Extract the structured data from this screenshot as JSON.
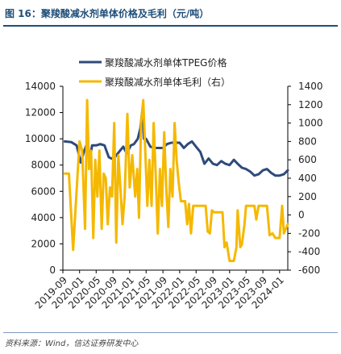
{
  "figure": {
    "title": "图 16：聚羧酸减水剂单体价格及毛利（元/吨）",
    "source": "资料来源：Wind，信达证券研发中心"
  },
  "colors": {
    "price": "#2e4a7a",
    "margin": "#f5b800",
    "title": "#1f4e79"
  },
  "chart_data": {
    "type": "line",
    "title": "",
    "x_axis": {
      "type": "date",
      "range": [
        "2019-09",
        "2024-03"
      ],
      "tick_labels": [
        "2019-09",
        "2020-01",
        "2020-05",
        "2020-09",
        "2021-01",
        "2021-05",
        "2021-09",
        "2022-01",
        "2022-05",
        "2022-09",
        "2023-01",
        "2023-05",
        "2023-09",
        "2024-01"
      ],
      "tick_values": [
        "2019-09",
        "2020-01",
        "2020-05",
        "2020-09",
        "2021-01",
        "2021-05",
        "2021-09",
        "2022-01",
        "2022-05",
        "2022-09",
        "2023-01",
        "2023-05",
        "2023-09",
        "2024-01"
      ]
    },
    "y_left": {
      "min": 0,
      "max": 14000,
      "ticks": [
        0,
        2000,
        4000,
        6000,
        8000,
        10000,
        12000,
        14000
      ],
      "tick_labels": [
        "0",
        "2000",
        "4000",
        "6000",
        "8000",
        "10000",
        "12000",
        "14000"
      ]
    },
    "y_right": {
      "min": -600,
      "max": 1400,
      "ticks": [
        -600,
        -400,
        -200,
        0,
        200,
        400,
        600,
        800,
        1000,
        1200,
        1400
      ],
      "tick_labels": [
        "-600",
        "-400",
        "-200",
        "0",
        "200",
        "400",
        "600",
        "800",
        "1000",
        "1200",
        "1400"
      ]
    },
    "legend": {
      "position": "top",
      "entries": [
        "聚羧酸减水剂单体TPEG价格",
        "聚羧酸减水剂单体毛利（右）"
      ]
    },
    "grid": false,
    "series": [
      {
        "name": "聚羧酸减水剂单体TPEG价格",
        "axis": "left",
        "points": [
          [
            "2019-09-15",
            9800
          ],
          [
            "2019-11-01",
            9750
          ],
          [
            "2019-12-10",
            9500
          ],
          [
            "2020-01-10",
            8200
          ],
          [
            "2020-02-01",
            9000
          ],
          [
            "2020-03-01",
            9800
          ],
          [
            "2020-03-15",
            8300
          ],
          [
            "2020-04-01",
            9500
          ],
          [
            "2020-05-01",
            9500
          ],
          [
            "2020-06-01",
            9600
          ],
          [
            "2020-07-01",
            9500
          ],
          [
            "2020-08-01",
            8600
          ],
          [
            "2020-08-20",
            8500
          ],
          [
            "2020-09-15",
            8600
          ],
          [
            "2020-10-15",
            9000
          ],
          [
            "2020-11-15",
            9400
          ],
          [
            "2020-12-10",
            8900
          ],
          [
            "2021-01-10",
            9500
          ],
          [
            "2021-02-01",
            9600
          ],
          [
            "2021-03-01",
            10000
          ],
          [
            "2021-03-20",
            10800
          ],
          [
            "2021-04-05",
            12300
          ],
          [
            "2021-04-15",
            10000
          ],
          [
            "2021-05-01",
            10000
          ],
          [
            "2021-06-01",
            9400
          ],
          [
            "2021-07-01",
            9300
          ],
          [
            "2021-08-01",
            9300
          ],
          [
            "2021-09-01",
            9300
          ],
          [
            "2021-10-01",
            9600
          ],
          [
            "2021-11-01",
            9700
          ],
          [
            "2021-12-01",
            9700
          ],
          [
            "2022-01-01",
            9700
          ],
          [
            "2022-02-01",
            9300
          ],
          [
            "2022-03-01",
            9600
          ],
          [
            "2022-04-01",
            9800
          ],
          [
            "2022-05-01",
            9400
          ],
          [
            "2022-06-01",
            9000
          ],
          [
            "2022-07-01",
            8100
          ],
          [
            "2022-08-01",
            8500
          ],
          [
            "2022-09-01",
            8100
          ],
          [
            "2022-10-01",
            8000
          ],
          [
            "2022-11-01",
            8300
          ],
          [
            "2022-12-01",
            8100
          ],
          [
            "2023-01-01",
            8000
          ],
          [
            "2023-02-01",
            8400
          ],
          [
            "2023-03-01",
            8100
          ],
          [
            "2023-04-01",
            7800
          ],
          [
            "2023-05-01",
            7700
          ],
          [
            "2023-06-01",
            7500
          ],
          [
            "2023-07-01",
            7200
          ],
          [
            "2023-08-01",
            7300
          ],
          [
            "2023-09-01",
            7600
          ],
          [
            "2023-10-01",
            7700
          ],
          [
            "2023-11-01",
            7400
          ],
          [
            "2023-12-01",
            7200
          ],
          [
            "2024-01-01",
            7200
          ],
          [
            "2024-02-01",
            7300
          ],
          [
            "2024-03-01",
            7600
          ]
        ]
      },
      {
        "name": "聚羧酸减水剂单体毛利（右）",
        "axis": "right",
        "points": [
          [
            "2019-09-15",
            450
          ],
          [
            "2019-10-15",
            450
          ],
          [
            "2019-11-15",
            -380
          ],
          [
            "2019-12-15",
            380
          ],
          [
            "2020-01-01",
            800
          ],
          [
            "2020-01-20",
            700
          ],
          [
            "2020-02-10",
            -150
          ],
          [
            "2020-02-25",
            1250
          ],
          [
            "2020-03-10",
            500
          ],
          [
            "2020-03-25",
            700
          ],
          [
            "2020-04-10",
            -250
          ],
          [
            "2020-04-25",
            600
          ],
          [
            "2020-05-10",
            200
          ],
          [
            "2020-05-25",
            700
          ],
          [
            "2020-06-10",
            -150
          ],
          [
            "2020-06-25",
            450
          ],
          [
            "2020-07-10",
            400
          ],
          [
            "2020-07-25",
            -100
          ],
          [
            "2020-08-10",
            300
          ],
          [
            "2020-08-25",
            200
          ],
          [
            "2020-09-10",
            1000
          ],
          [
            "2020-09-25",
            -300
          ],
          [
            "2020-10-10",
            650
          ],
          [
            "2020-10-25",
            300
          ],
          [
            "2020-11-10",
            -100
          ],
          [
            "2020-11-25",
            200
          ],
          [
            "2020-12-15",
            1100
          ],
          [
            "2021-01-01",
            300
          ],
          [
            "2021-01-20",
            650
          ],
          [
            "2021-02-10",
            200
          ],
          [
            "2021-02-25",
            500
          ],
          [
            "2021-03-10",
            -30
          ],
          [
            "2021-03-25",
            1000
          ],
          [
            "2021-04-10",
            1250
          ],
          [
            "2021-04-25",
            700
          ],
          [
            "2021-05-10",
            100
          ],
          [
            "2021-05-25",
            600
          ],
          [
            "2021-06-10",
            100
          ],
          [
            "2021-06-25",
            1000
          ],
          [
            "2021-07-10",
            450
          ],
          [
            "2021-07-25",
            -200
          ],
          [
            "2021-08-10",
            500
          ],
          [
            "2021-08-25",
            100
          ],
          [
            "2021-09-10",
            900
          ],
          [
            "2021-09-25",
            300
          ],
          [
            "2021-10-10",
            -130
          ],
          [
            "2021-10-25",
            500
          ],
          [
            "2021-11-10",
            200
          ],
          [
            "2021-11-25",
            1000
          ],
          [
            "2021-12-10",
            600
          ],
          [
            "2021-12-25",
            350
          ],
          [
            "2022-01-10",
            150
          ],
          [
            "2022-01-25",
            150
          ],
          [
            "2022-02-10",
            150
          ],
          [
            "2022-02-25",
            -100
          ],
          [
            "2022-03-10",
            120
          ],
          [
            "2022-03-25",
            -200
          ],
          [
            "2022-04-10",
            100
          ],
          [
            "2022-05-10",
            100
          ],
          [
            "2022-06-10",
            100
          ],
          [
            "2022-07-10",
            100
          ],
          [
            "2022-07-25",
            -180
          ],
          [
            "2022-08-10",
            -200
          ],
          [
            "2022-08-25",
            50
          ],
          [
            "2022-09-10",
            30
          ],
          [
            "2022-10-10",
            30
          ],
          [
            "2022-11-10",
            30
          ],
          [
            "2022-11-25",
            -350
          ],
          [
            "2022-12-10",
            -300
          ],
          [
            "2023-01-01",
            -500
          ],
          [
            "2023-02-01",
            -500
          ],
          [
            "2023-02-20",
            -350
          ],
          [
            "2023-03-01",
            50
          ],
          [
            "2023-03-20",
            -350
          ],
          [
            "2023-04-01",
            -320
          ],
          [
            "2023-04-20",
            -100
          ],
          [
            "2023-05-01",
            100
          ],
          [
            "2023-06-01",
            100
          ],
          [
            "2023-07-01",
            100
          ],
          [
            "2023-07-15",
            -50
          ],
          [
            "2023-08-01",
            100
          ],
          [
            "2023-09-01",
            100
          ],
          [
            "2023-10-01",
            100
          ],
          [
            "2023-10-20",
            -220
          ],
          [
            "2023-11-10",
            -200
          ],
          [
            "2023-12-01",
            -250
          ],
          [
            "2024-01-01",
            -250
          ],
          [
            "2024-01-20",
            100
          ],
          [
            "2024-02-01",
            -200
          ],
          [
            "2024-03-01",
            -100
          ]
        ]
      }
    ]
  }
}
